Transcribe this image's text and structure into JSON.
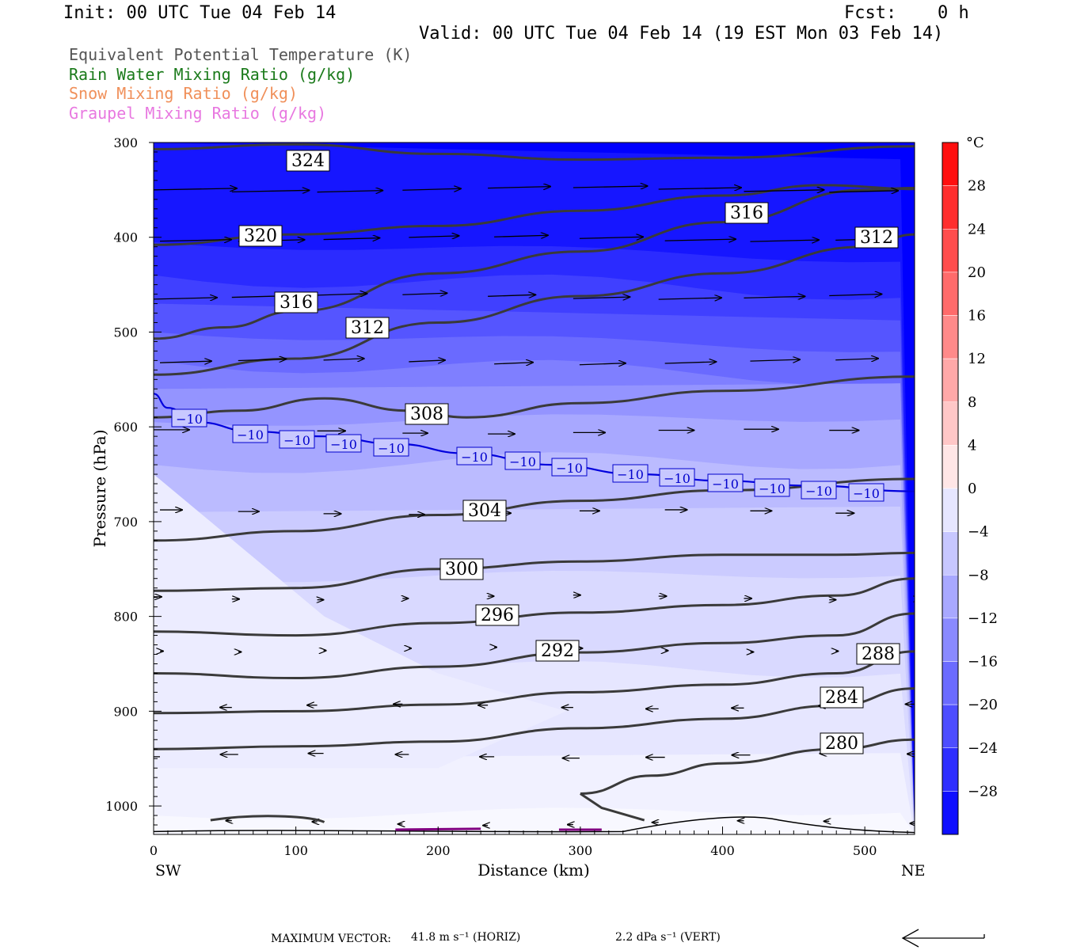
{
  "header": {
    "init": "Init: 00 UTC Tue 04 Feb 14",
    "fcst_label": "Fcst:",
    "fcst_value": "0 h",
    "valid": "Valid: 00 UTC Tue 04 Feb 14 (19 EST Mon 03 Feb 14)"
  },
  "legend": [
    {
      "text": "Equivalent Potential Temperature (K)",
      "color": "#555555"
    },
    {
      "text": "Rain Water Mixing Ratio (g/kg)",
      "color": "#1a7a1a"
    },
    {
      "text": "Snow Mixing Ratio (g/kg)",
      "color": "#f0905a"
    },
    {
      "text": "Graupel Mixing Ratio (g/kg)",
      "color": "#e878e0"
    }
  ],
  "footer": {
    "label": "MAXIMUM VECTOR:",
    "horiz": "41.8 m s⁻¹ (HORIZ)",
    "vert": "2.2 dPa s⁻¹ (VERT)"
  },
  "chart_data": {
    "type": "cross-section",
    "xlabel": "Distance (km)",
    "ylabel": "Pressure (hPa)",
    "xlim": [
      0,
      535
    ],
    "ylim": [
      300,
      1030
    ],
    "x_ticks": [
      0,
      100,
      200,
      300,
      400,
      500
    ],
    "y_ticks": [
      300,
      400,
      500,
      600,
      700,
      800,
      900,
      1000
    ],
    "x_end_labels": {
      "left": "SW",
      "right": "NE"
    },
    "colorbar": {
      "unit": "°C",
      "min": -32,
      "max": 32,
      "step": 4,
      "tick_labels": [
        "28",
        "24",
        "20",
        "16",
        "12",
        "8",
        "4",
        "0",
        "−4",
        "−8",
        "−12",
        "−16",
        "−20",
        "−24",
        "−28"
      ],
      "tick_values": [
        28,
        24,
        20,
        16,
        12,
        8,
        4,
        0,
        -4,
        -8,
        -12,
        -16,
        -20,
        -24,
        -28
      ],
      "colors": [
        "#0000ff",
        "#1a1aff",
        "#3333ff",
        "#4d4dff",
        "#6161ff",
        "#7676ff",
        "#8a8aff",
        "#9e9eff",
        "#b1b1ff",
        "#c4c4ff",
        "#d6d6ff",
        "#e4e4ff",
        "#f0f0ff",
        "#fff0f0",
        "#ffe0e0",
        "#ffcccc",
        "#ffb8b8",
        "#ffa3a3",
        "#ff8e8e",
        "#ff7878",
        "#ff6060",
        "#ff4848",
        "#ff3030",
        "#ff1818",
        "#ff0000"
      ]
    },
    "theta_e_contours": [
      {
        "label": "324",
        "points": [
          [
            0,
            307
          ],
          [
            100,
            302
          ],
          [
            200,
            312
          ],
          [
            300,
            318
          ],
          [
            400,
            316
          ],
          [
            535,
            304
          ]
        ]
      },
      {
        "label": "320",
        "points": [
          [
            0,
            408
          ],
          [
            100,
            397
          ],
          [
            200,
            388
          ],
          [
            300,
            372
          ],
          [
            400,
            356
          ],
          [
            470,
            345
          ],
          [
            535,
            349
          ]
        ]
      },
      {
        "label": "316",
        "points": [
          [
            0,
            507
          ],
          [
            50,
            495
          ],
          [
            100,
            478
          ],
          [
            200,
            438
          ],
          [
            300,
            415
          ],
          [
            400,
            384
          ],
          [
            500,
            350
          ],
          [
            535,
            348
          ]
        ]
      },
      {
        "label": "312",
        "points": [
          [
            0,
            545
          ],
          [
            100,
            528
          ],
          [
            200,
            490
          ],
          [
            300,
            462
          ],
          [
            400,
            438
          ],
          [
            500,
            410
          ],
          [
            535,
            397
          ]
        ]
      },
      {
        "label": "308",
        "points": [
          [
            0,
            590
          ],
          [
            60,
            583
          ],
          [
            120,
            570
          ],
          [
            180,
            583
          ],
          [
            220,
            590
          ],
          [
            300,
            575
          ],
          [
            400,
            562
          ],
          [
            535,
            547
          ]
        ]
      },
      {
        "label": "304",
        "points": [
          [
            0,
            720
          ],
          [
            100,
            710
          ],
          [
            200,
            693
          ],
          [
            300,
            678
          ],
          [
            400,
            667
          ],
          [
            535,
            655
          ]
        ]
      },
      {
        "label": "300",
        "points": [
          [
            0,
            773
          ],
          [
            100,
            770
          ],
          [
            200,
            750
          ],
          [
            300,
            742
          ],
          [
            400,
            735
          ],
          [
            480,
            735
          ],
          [
            535,
            733
          ]
        ]
      },
      {
        "label": "296",
        "points": [
          [
            0,
            816
          ],
          [
            100,
            820
          ],
          [
            200,
            807
          ],
          [
            300,
            796
          ],
          [
            400,
            788
          ],
          [
            480,
            778
          ],
          [
            535,
            760
          ]
        ]
      },
      {
        "label": "292",
        "points": [
          [
            0,
            860
          ],
          [
            100,
            865
          ],
          [
            200,
            853
          ],
          [
            300,
            838
          ],
          [
            400,
            828
          ],
          [
            480,
            820
          ],
          [
            535,
            797
          ]
        ]
      },
      {
        "label": "288",
        "points": [
          [
            0,
            902
          ],
          [
            100,
            900
          ],
          [
            200,
            893
          ],
          [
            300,
            880
          ],
          [
            400,
            872
          ],
          [
            480,
            860
          ],
          [
            535,
            837
          ]
        ]
      },
      {
        "label": "284",
        "points": [
          [
            0,
            940
          ],
          [
            100,
            937
          ],
          [
            200,
            932
          ],
          [
            300,
            918
          ],
          [
            400,
            908
          ],
          [
            480,
            894
          ],
          [
            535,
            876
          ]
        ]
      },
      {
        "label": "280",
        "points": [
          [
            300,
            987
          ],
          [
            350,
            968
          ],
          [
            400,
            955
          ],
          [
            480,
            940
          ],
          [
            535,
            930
          ]
        ]
      }
    ],
    "temperature_contour": {
      "label": "−10",
      "value": -10
    }
  }
}
